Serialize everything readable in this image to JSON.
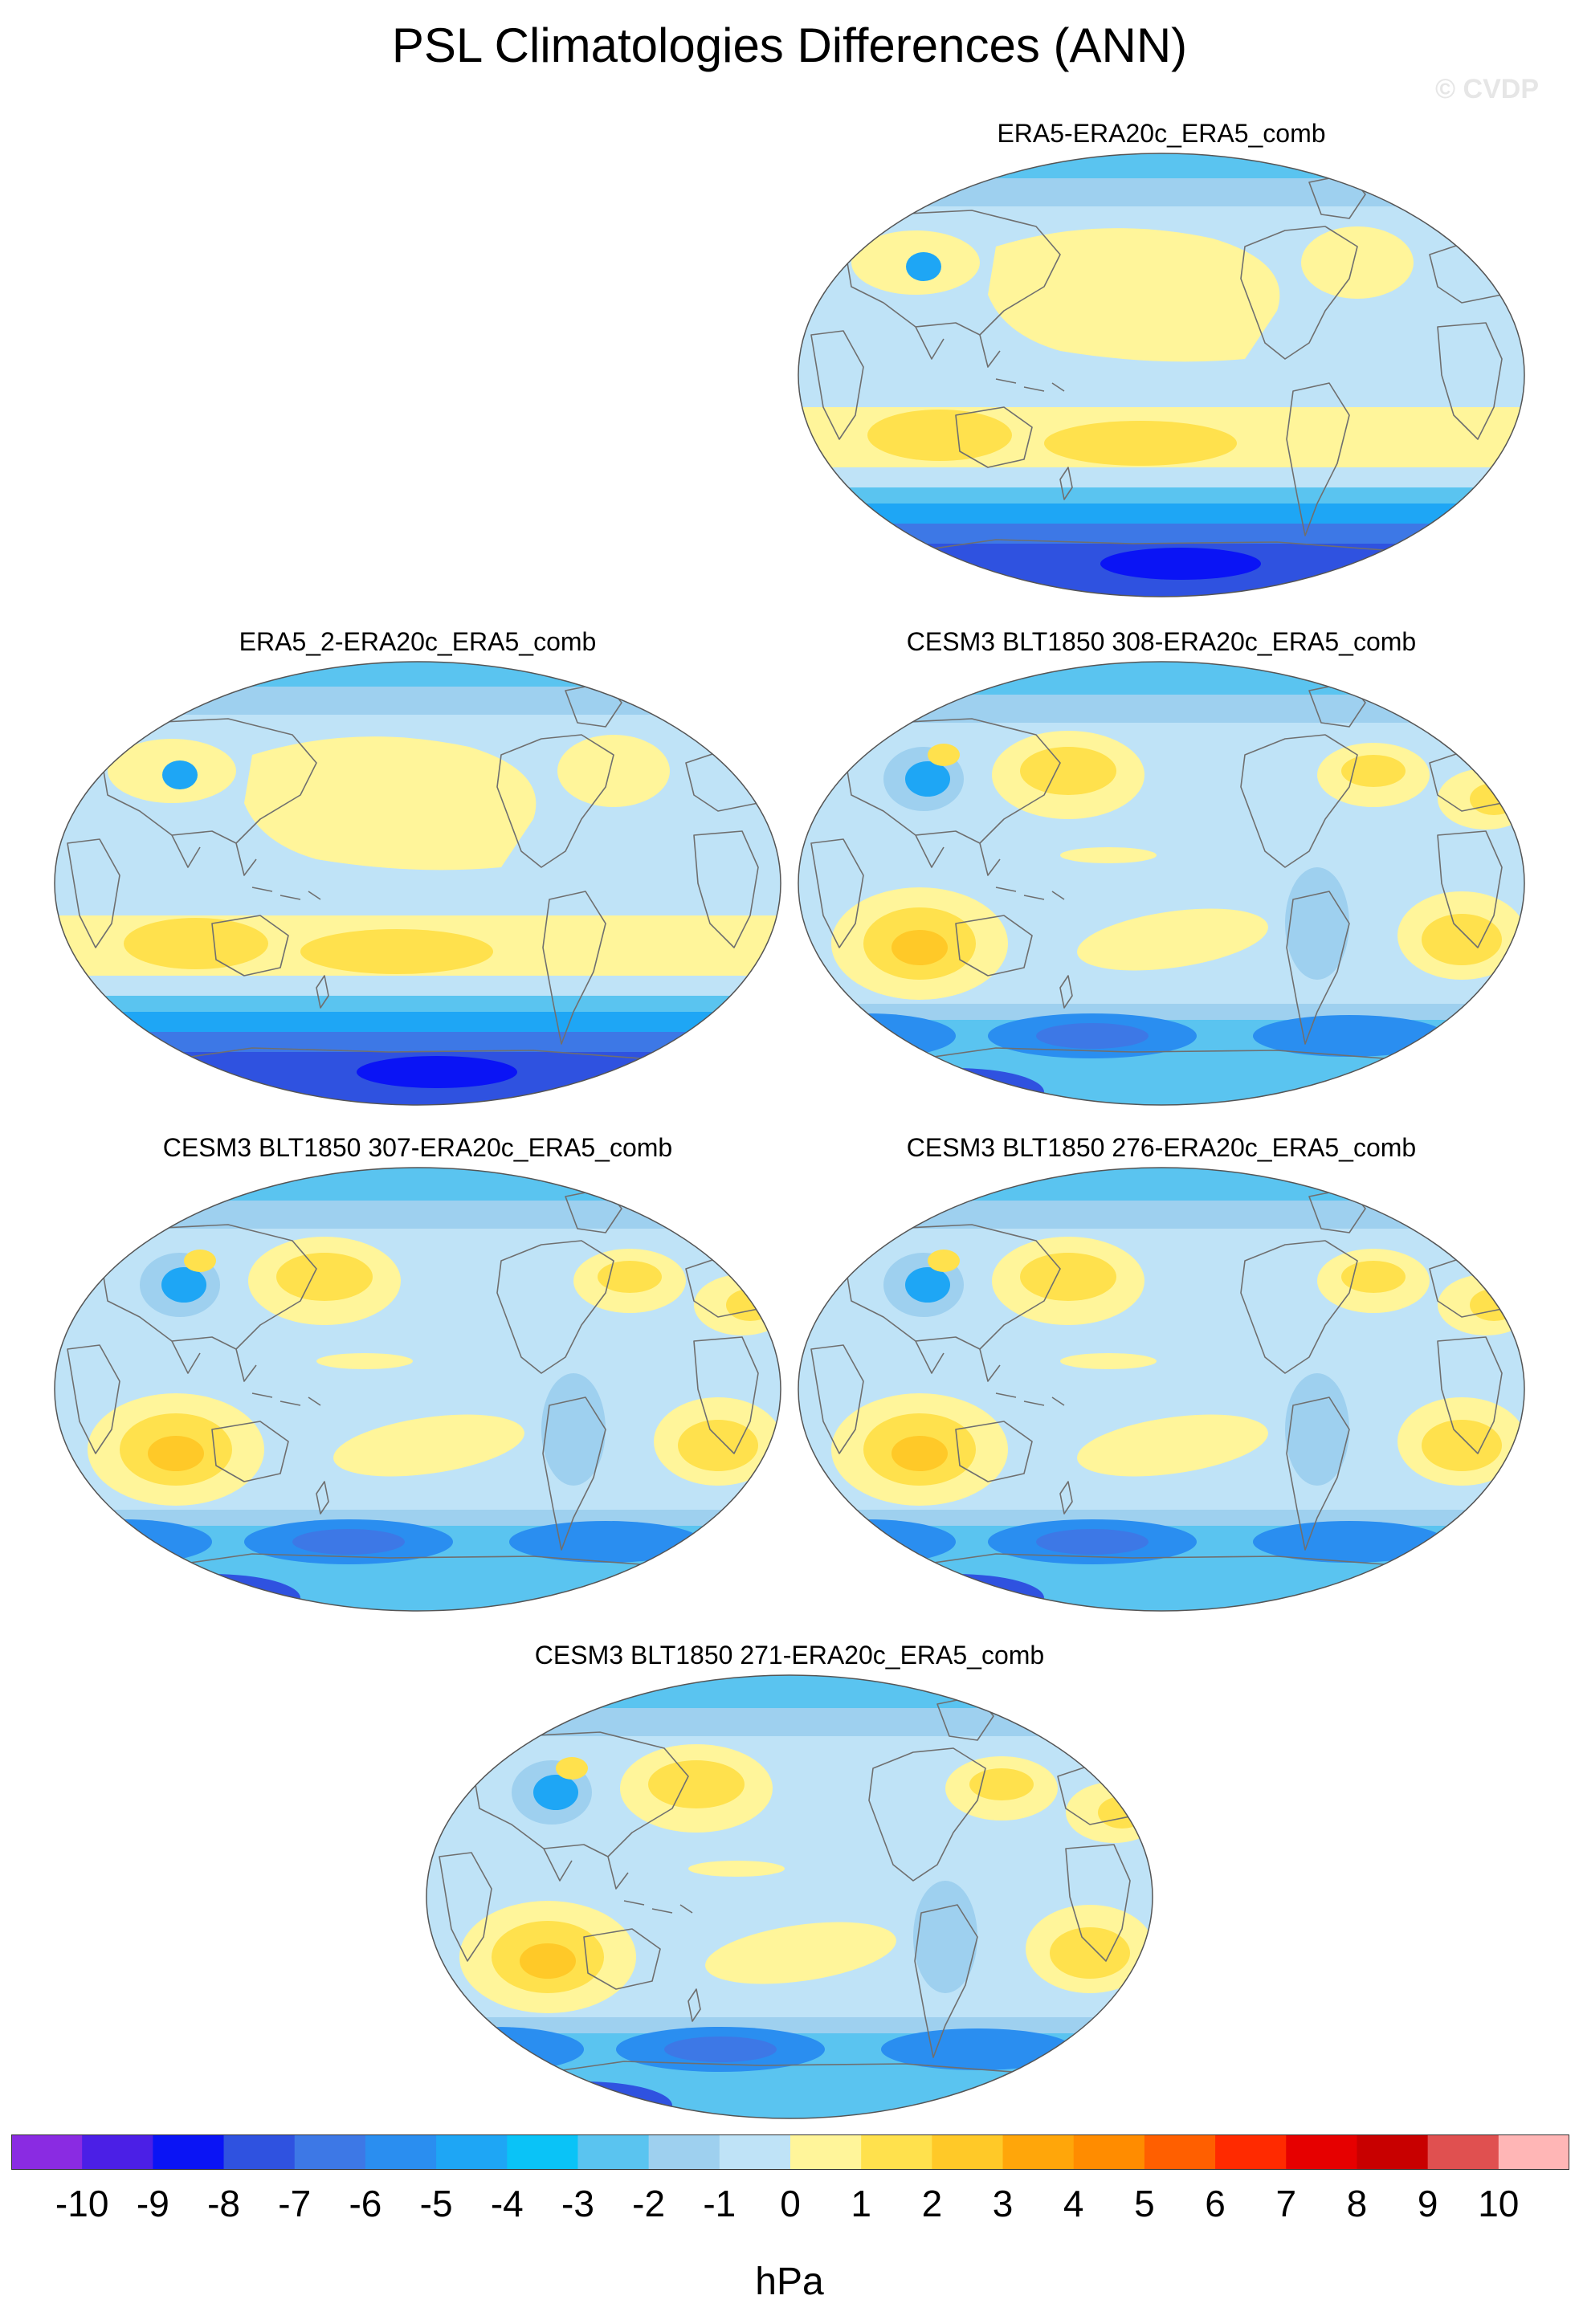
{
  "title": "PSL Climatologies Differences (ANN)",
  "watermark": "© CVDP",
  "panels": [
    {
      "name": "era5",
      "label": "ERA5-ERA20c_ERA5_comb",
      "style": "reanalysis"
    },
    {
      "name": "era5-2",
      "label": "ERA5_2-ERA20c_ERA5_comb",
      "style": "reanalysis"
    },
    {
      "name": "cesm3-308",
      "label": "CESM3 BLT1850 308-ERA20c_ERA5_comb",
      "style": "model"
    },
    {
      "name": "cesm3-307",
      "label": "CESM3 BLT1850 307-ERA20c_ERA5_comb",
      "style": "model"
    },
    {
      "name": "cesm3-276",
      "label": "CESM3 BLT1850 276-ERA20c_ERA5_comb",
      "style": "model"
    },
    {
      "name": "cesm3-271",
      "label": "CESM3 BLT1850 271-ERA20c_ERA5_comb",
      "style": "model"
    }
  ],
  "colorbar": {
    "units": "hPa",
    "labels": [
      "-10",
      "-9",
      "-8",
      "-7",
      "-6",
      "-5",
      "-4",
      "-3",
      "-2",
      "-1",
      "0",
      "1",
      "2",
      "3",
      "4",
      "5",
      "6",
      "7",
      "8",
      "9",
      "10"
    ],
    "colors": [
      "#8a2be2",
      "#4b1fe6",
      "#0a14f5",
      "#2f52e0",
      "#3d78e6",
      "#2a8ef0",
      "#1ea6f5",
      "#0ac3f7",
      "#5ac4f0",
      "#9ed0ef",
      "#bfe3f7",
      "#fff59a",
      "#ffe14d",
      "#ffc928",
      "#ffa60a",
      "#ff8c00",
      "#ff5f00",
      "#ff2a00",
      "#e60000",
      "#c80000",
      "#e05050",
      "#ffb6b6"
    ]
  }
}
